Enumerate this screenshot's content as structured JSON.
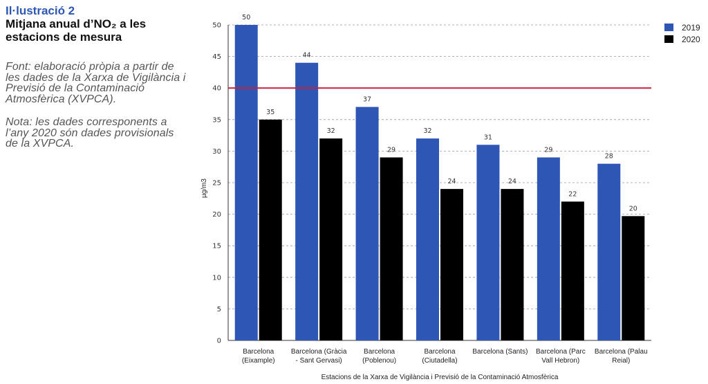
{
  "illustration": {
    "kicker": "Il·lustració 2",
    "title": "Mitjana anual d’NO₂ a les estacions de mesura",
    "source": "Font: elaboració pròpia a partir de les dades de la Xarxa de Vigilància i Previsió de la Contaminació Atmosfèrica (XVPCA).",
    "note": "Nota: les dades corresponents a l’any 2020 són dades provisionals de la XVPCA."
  },
  "chart_data": {
    "type": "bar",
    "categories": [
      [
        "Barcelona",
        "(Eixample)"
      ],
      [
        "Barcelona (Gràcia",
        "- Sant Gervasi)"
      ],
      [
        "Barcelona",
        "(Poblenou)"
      ],
      [
        "Barcelona",
        "(Ciutadella)"
      ],
      [
        "Barcelona (Sants)"
      ],
      [
        "Barcelona (Parc",
        "Vall Hebron)"
      ],
      [
        "Barcelona (Palau",
        "Reial)"
      ]
    ],
    "series": [
      {
        "name": "2019",
        "color": "#2e56b4",
        "values": [
          50,
          44,
          37,
          32,
          31,
          29,
          28
        ],
        "labels": [
          "50",
          "44",
          "37",
          "32",
          "31",
          "29",
          "28"
        ]
      },
      {
        "name": "2020",
        "color": "#000000",
        "values": [
          35,
          32,
          29,
          24,
          24,
          22,
          19.7
        ],
        "labels": [
          "35",
          "32",
          "29",
          "24",
          "24",
          "22",
          "20"
        ]
      }
    ],
    "xlabel": "Estacions de la Xarxa de Vigilància i Previsió de la Contaminació Atmosfèrica",
    "ylabel": "µg/m3",
    "ylim": [
      0,
      50
    ],
    "yticks": [
      0,
      5,
      10,
      15,
      20,
      25,
      30,
      35,
      40,
      45,
      50
    ],
    "reference_line": {
      "value": 40,
      "color": "#c8203c"
    },
    "grid": true,
    "legend_position": "top-right"
  }
}
